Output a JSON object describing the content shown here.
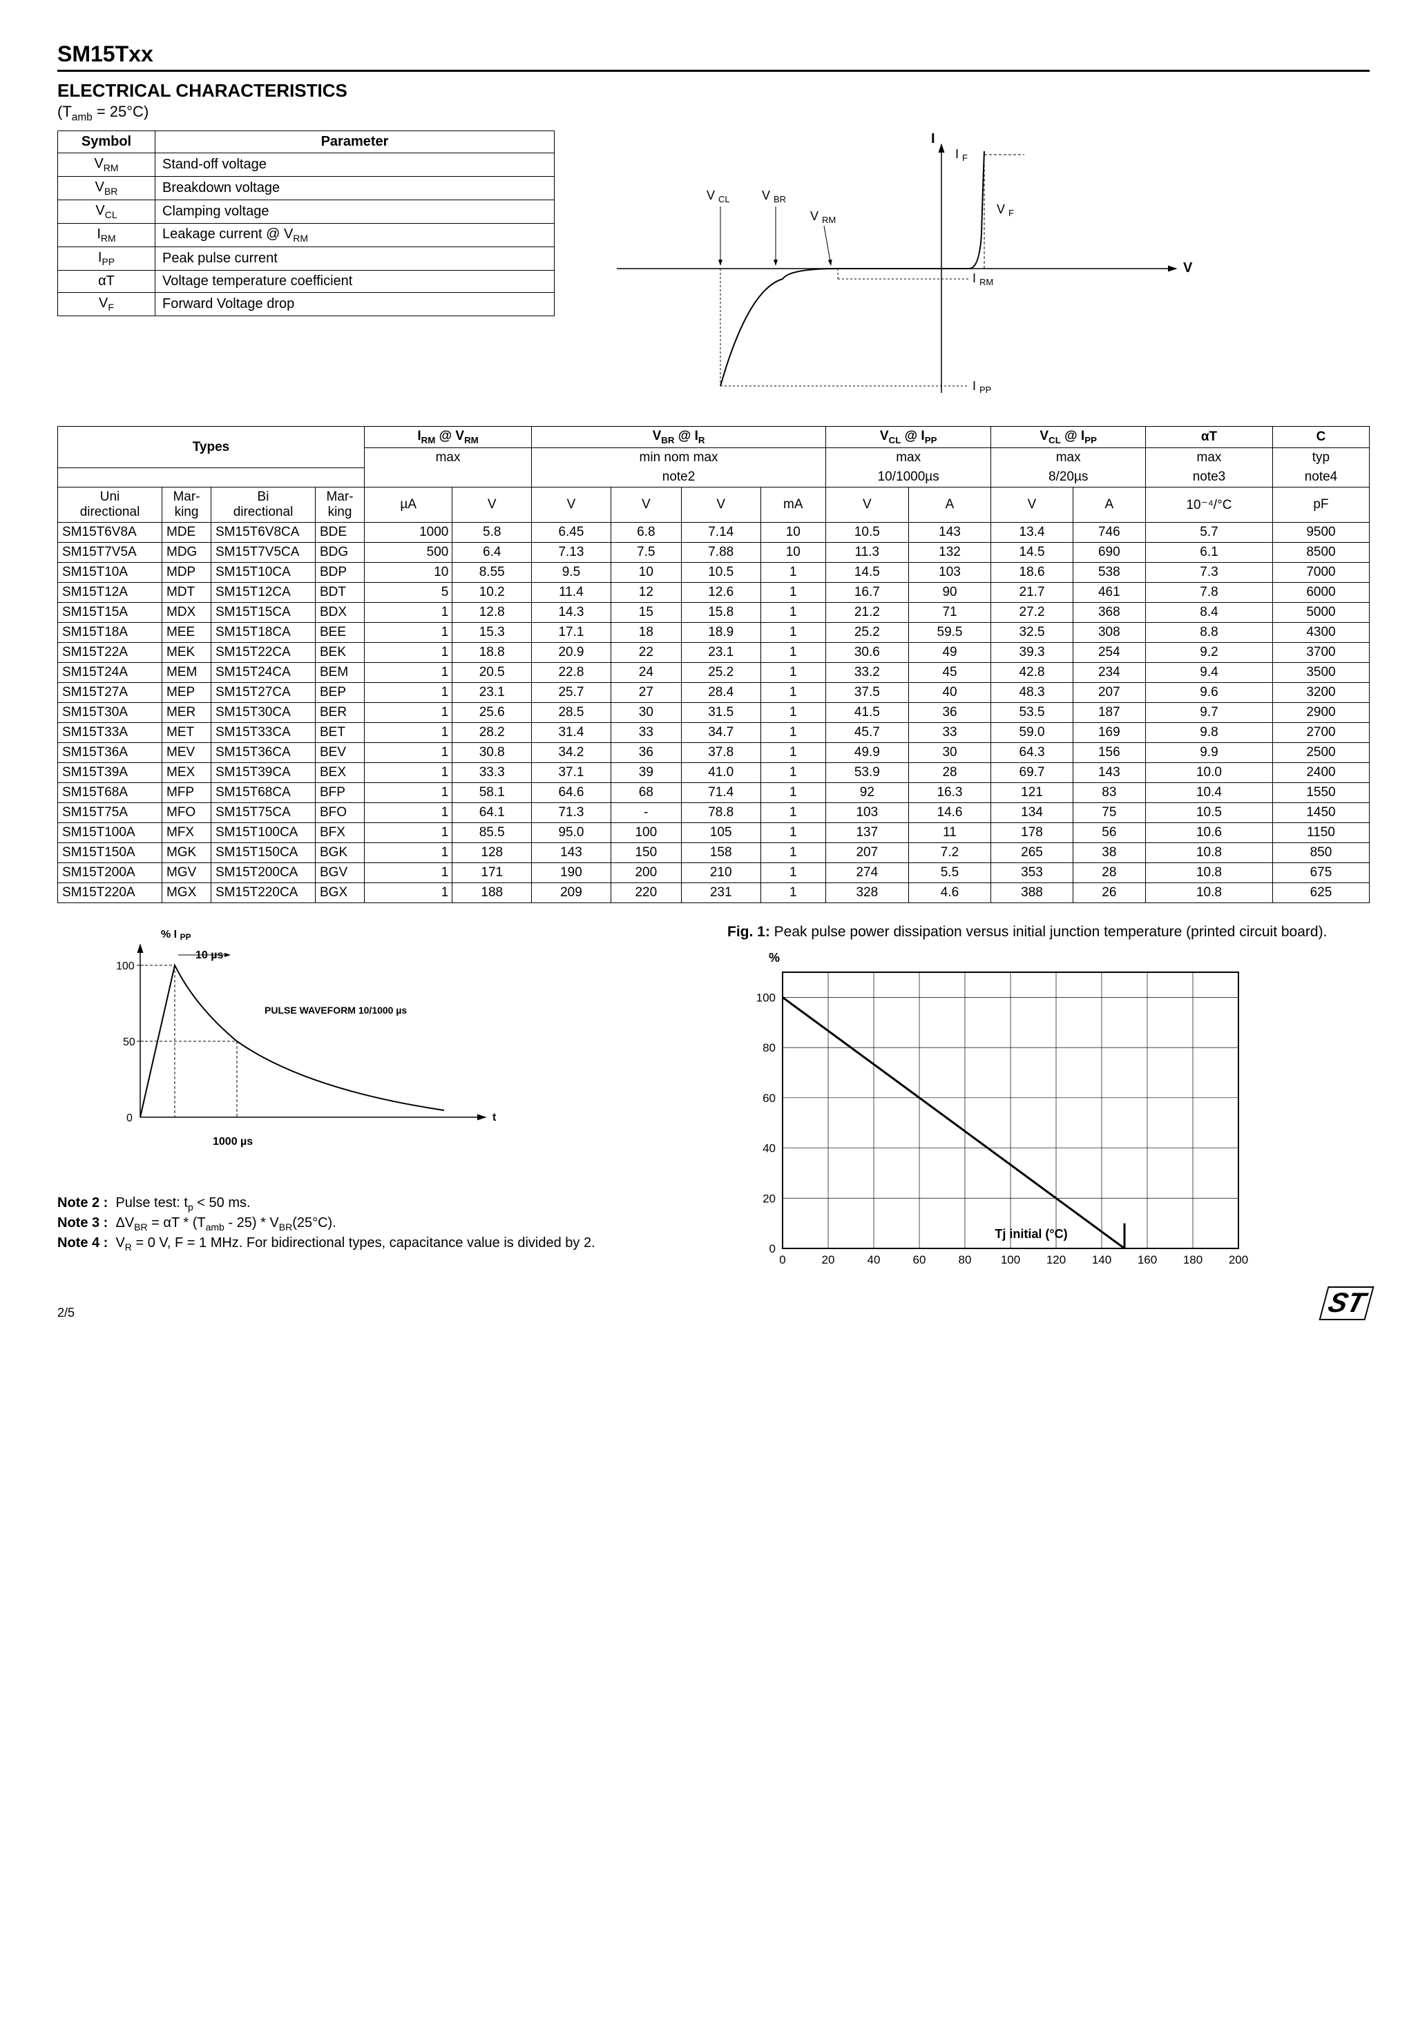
{
  "header": {
    "title": "SM15Txx",
    "section": "ELECTRICAL CHARACTERISTICS",
    "condition": "(Tamb = 25°C)",
    "page_number": "2/5",
    "logo_text": "ST"
  },
  "param_table": {
    "headers": [
      "Symbol",
      "Parameter"
    ],
    "rows": [
      {
        "sym_html": "V<sub>RM</sub>",
        "param": "Stand-off voltage"
      },
      {
        "sym_html": "V<sub>BR</sub>",
        "param": "Breakdown voltage"
      },
      {
        "sym_html": "V<sub>CL</sub>",
        "param": "Clamping voltage"
      },
      {
        "sym_html": "I<sub>RM</sub>",
        "param": "Leakage current @ V<sub>RM</sub>"
      },
      {
        "sym_html": "I<sub>PP</sub>",
        "param": "Peak pulse current"
      },
      {
        "sym_html": "αT",
        "param": "Voltage temperature coefficient"
      },
      {
        "sym_html": "V<sub>F</sub>",
        "param": "Forward Voltage drop"
      }
    ]
  },
  "iv_curve": {
    "type": "diagram",
    "labels": {
      "I": "I",
      "V": "V",
      "IF": "I F",
      "VF": "V F",
      "VCL": "V CL",
      "VBR": "V BR",
      "VRM": "V RM",
      "IRM": "I RM",
      "IPP": "I PP"
    },
    "line_color": "#000000",
    "dash_color": "#000000"
  },
  "main_table": {
    "group_headers": [
      {
        "label": "Types",
        "colspan": 4
      },
      {
        "label_html": "I<sub>RM</sub> @ V<sub>RM</sub>",
        "sub": "max",
        "colspan": 2
      },
      {
        "label_html": "V<sub>BR</sub> @ I<sub>R</sub>",
        "sub": "min  nom  max",
        "note": "note2",
        "colspan": 4
      },
      {
        "label_html": "V<sub>CL</sub> @ I<sub>PP</sub>",
        "sub": "max",
        "note": "10/1000µs",
        "colspan": 2
      },
      {
        "label_html": "V<sub>CL</sub> @ I<sub>PP</sub>",
        "sub": "max",
        "note": "8/20µs",
        "colspan": 2
      },
      {
        "label_html": "αT",
        "sub": "max",
        "note": "note3",
        "colspan": 1
      },
      {
        "label_html": "C",
        "sub": "typ",
        "note": "note4",
        "colspan": 1
      }
    ],
    "sub_headers": [
      "Uni directional",
      "Mar-king",
      "Bi directional",
      "Mar-king",
      "µA",
      "V",
      "V",
      "V",
      "V",
      "mA",
      "V",
      "A",
      "V",
      "A",
      "10⁻⁴/°C",
      "pF"
    ],
    "rows": [
      [
        "SM15T6V8A",
        "MDE",
        "SM15T6V8CA",
        "BDE",
        "1000",
        "5.8",
        "6.45",
        "6.8",
        "7.14",
        "10",
        "10.5",
        "143",
        "13.4",
        "746",
        "5.7",
        "9500"
      ],
      [
        "SM15T7V5A",
        "MDG",
        "SM15T7V5CA",
        "BDG",
        "500",
        "6.4",
        "7.13",
        "7.5",
        "7.88",
        "10",
        "11.3",
        "132",
        "14.5",
        "690",
        "6.1",
        "8500"
      ],
      [
        "SM15T10A",
        "MDP",
        "SM15T10CA",
        "BDP",
        "10",
        "8.55",
        "9.5",
        "10",
        "10.5",
        "1",
        "14.5",
        "103",
        "18.6",
        "538",
        "7.3",
        "7000"
      ],
      [
        "SM15T12A",
        "MDT",
        "SM15T12CA",
        "BDT",
        "5",
        "10.2",
        "11.4",
        "12",
        "12.6",
        "1",
        "16.7",
        "90",
        "21.7",
        "461",
        "7.8",
        "6000"
      ],
      [
        "SM15T15A",
        "MDX",
        "SM15T15CA",
        "BDX",
        "1",
        "12.8",
        "14.3",
        "15",
        "15.8",
        "1",
        "21.2",
        "71",
        "27.2",
        "368",
        "8.4",
        "5000"
      ],
      [
        "SM15T18A",
        "MEE",
        "SM15T18CA",
        "BEE",
        "1",
        "15.3",
        "17.1",
        "18",
        "18.9",
        "1",
        "25.2",
        "59.5",
        "32.5",
        "308",
        "8.8",
        "4300"
      ],
      [
        "SM15T22A",
        "MEK",
        "SM15T22CA",
        "BEK",
        "1",
        "18.8",
        "20.9",
        "22",
        "23.1",
        "1",
        "30.6",
        "49",
        "39.3",
        "254",
        "9.2",
        "3700"
      ],
      [
        "SM15T24A",
        "MEM",
        "SM15T24CA",
        "BEM",
        "1",
        "20.5",
        "22.8",
        "24",
        "25.2",
        "1",
        "33.2",
        "45",
        "42.8",
        "234",
        "9.4",
        "3500"
      ],
      [
        "SM15T27A",
        "MEP",
        "SM15T27CA",
        "BEP",
        "1",
        "23.1",
        "25.7",
        "27",
        "28.4",
        "1",
        "37.5",
        "40",
        "48.3",
        "207",
        "9.6",
        "3200"
      ],
      [
        "SM15T30A",
        "MER",
        "SM15T30CA",
        "BER",
        "1",
        "25.6",
        "28.5",
        "30",
        "31.5",
        "1",
        "41.5",
        "36",
        "53.5",
        "187",
        "9.7",
        "2900"
      ],
      [
        "SM15T33A",
        "MET",
        "SM15T33CA",
        "BET",
        "1",
        "28.2",
        "31.4",
        "33",
        "34.7",
        "1",
        "45.7",
        "33",
        "59.0",
        "169",
        "9.8",
        "2700"
      ],
      [
        "SM15T36A",
        "MEV",
        "SM15T36CA",
        "BEV",
        "1",
        "30.8",
        "34.2",
        "36",
        "37.8",
        "1",
        "49.9",
        "30",
        "64.3",
        "156",
        "9.9",
        "2500"
      ],
      [
        "SM15T39A",
        "MEX",
        "SM15T39CA",
        "BEX",
        "1",
        "33.3",
        "37.1",
        "39",
        "41.0",
        "1",
        "53.9",
        "28",
        "69.7",
        "143",
        "10.0",
        "2400"
      ],
      [
        "SM15T68A",
        "MFP",
        "SM15T68CA",
        "BFP",
        "1",
        "58.1",
        "64.6",
        "68",
        "71.4",
        "1",
        "92",
        "16.3",
        "121",
        "83",
        "10.4",
        "1550"
      ],
      [
        "SM15T75A",
        "MFO",
        "SM15T75CA",
        "BFO",
        "1",
        "64.1",
        "71.3",
        "-",
        "78.8",
        "1",
        "103",
        "14.6",
        "134",
        "75",
        "10.5",
        "1450"
      ],
      [
        "SM15T100A",
        "MFX",
        "SM15T100CA",
        "BFX",
        "1",
        "85.5",
        "95.0",
        "100",
        "105",
        "1",
        "137",
        "11",
        "178",
        "56",
        "10.6",
        "1150"
      ],
      [
        "SM15T150A",
        "MGK",
        "SM15T150CA",
        "BGK",
        "1",
        "128",
        "143",
        "150",
        "158",
        "1",
        "207",
        "7.2",
        "265",
        "38",
        "10.8",
        "850"
      ],
      [
        "SM15T200A",
        "MGV",
        "SM15T200CA",
        "BGV",
        "1",
        "171",
        "190",
        "200",
        "210",
        "1",
        "274",
        "5.5",
        "353",
        "28",
        "10.8",
        "675"
      ],
      [
        "SM15T220A",
        "MGX",
        "SM15T220CA",
        "BGX",
        "1",
        "188",
        "209",
        "220",
        "231",
        "1",
        "328",
        "4.6",
        "388",
        "26",
        "10.8",
        "625"
      ]
    ]
  },
  "pulse_chart": {
    "type": "line",
    "ylabel": "% I PP",
    "xlabel": "t",
    "ytick_labels": [
      "0",
      "50",
      "100"
    ],
    "annotations": {
      "rise": "10 µs",
      "fall": "1000 µs",
      "title": "PULSE WAVEFORM 10/1000 µs"
    },
    "line_color": "#000000",
    "background": "#ffffff"
  },
  "pp_chart": {
    "type": "line",
    "caption_html": "<b>Fig. 1:</b> Peak pulse power dissipation versus initial junction temperature (printed circuit board).",
    "ylabel": "%",
    "xlabel": "Tj initial (°C)",
    "xlim": [
      0,
      200
    ],
    "xtick_step": 20,
    "ylim": [
      0,
      110
    ],
    "yticks": [
      0,
      20,
      40,
      60,
      80,
      100
    ],
    "line": [
      {
        "x": 0,
        "y": 100
      },
      {
        "x": 150,
        "y": 0
      }
    ],
    "line_width": 3,
    "line_color": "#000000",
    "grid_color": "#000000",
    "background": "#ffffff"
  },
  "notes": [
    {
      "label": "Note 2 :",
      "text_html": "Pulse test: t<sub>p</sub> < 50 ms."
    },
    {
      "label": "Note 3 :",
      "text_html": "ΔV<sub>BR</sub> = αT * (T<sub>amb</sub> - 25) * V<sub>BR</sub>(25°C)."
    },
    {
      "label": "Note 4 :",
      "text_html": "V<sub>R</sub> = 0 V,  F = 1 MHz. For bidirectional types, capacitance value is divided by 2."
    }
  ]
}
